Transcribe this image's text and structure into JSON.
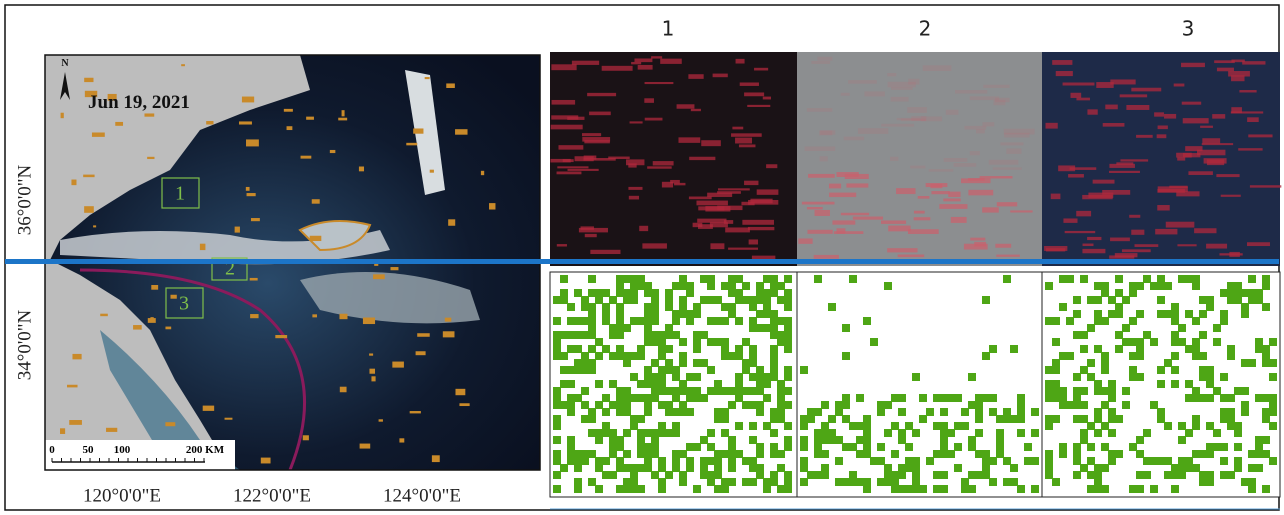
{
  "column_labels": [
    "1",
    "2",
    "3"
  ],
  "map": {
    "date": "Jun 19, 2021",
    "north": "N",
    "boxes": [
      "1",
      "2",
      "3"
    ],
    "scale_labels": [
      "0",
      "50",
      "100",
      "200 KM"
    ]
  },
  "lat_labels": [
    "36°0'0\"N",
    "34°0'0\"N"
  ],
  "lon_labels": [
    "120°0'0\"E",
    "122°0'0\"E",
    "124°0'0\"E"
  ]
}
